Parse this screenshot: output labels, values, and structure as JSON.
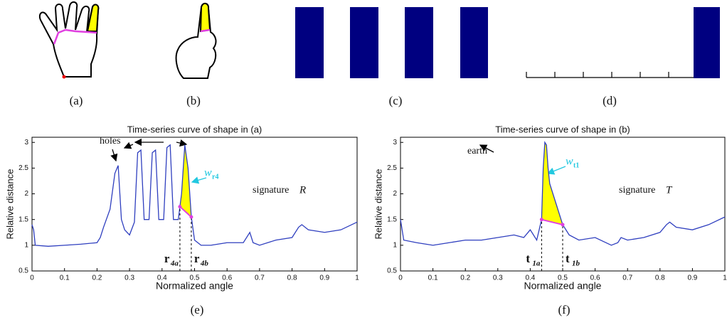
{
  "panel_labels": [
    "(a)",
    "(b)",
    "(c)",
    "(d)",
    "(e)",
    "(f)"
  ],
  "chart_data": [
    {
      "type": "line",
      "title": "Time-series curve of shape in (a)",
      "x_label": "Normalized angle",
      "y_label": "Relative distance",
      "x": [
        0,
        0.005,
        0.01,
        0.05,
        0.1,
        0.15,
        0.2,
        0.21,
        0.22,
        0.24,
        0.255,
        0.265,
        0.275,
        0.285,
        0.3,
        0.315,
        0.325,
        0.335,
        0.345,
        0.36,
        0.37,
        0.38,
        0.39,
        0.405,
        0.415,
        0.425,
        0.435,
        0.45,
        0.46,
        0.47,
        0.48,
        0.49,
        0.5,
        0.52,
        0.55,
        0.6,
        0.65,
        0.67,
        0.68,
        0.7,
        0.75,
        0.8,
        0.82,
        0.83,
        0.85,
        0.9,
        0.95,
        1
      ],
      "series": [
        {
          "color": "#2f3fbf",
          "values": [
            1.4,
            1.3,
            1.0,
            0.98,
            1.0,
            1.02,
            1.05,
            1.15,
            1.35,
            1.7,
            2.4,
            2.55,
            1.5,
            1.3,
            1.2,
            1.45,
            2.8,
            2.85,
            1.5,
            1.5,
            2.8,
            2.85,
            1.5,
            1.5,
            2.9,
            2.95,
            1.5,
            1.5,
            2.0,
            2.95,
            2.5,
            1.55,
            1.1,
            1.0,
            1.0,
            1.05,
            1.05,
            1.25,
            1.05,
            1.0,
            1.1,
            1.15,
            1.35,
            1.4,
            1.3,
            1.25,
            1.3,
            1.45
          ]
        }
      ],
      "xlim": [
        0,
        1
      ],
      "ylim": [
        0.5,
        3.1
      ],
      "xticks": [
        0,
        0.1,
        0.2,
        0.3,
        0.4,
        0.5,
        0.6,
        0.7,
        0.8,
        0.9,
        1
      ],
      "yticks": [
        0.5,
        1,
        1.5,
        2,
        2.5,
        3
      ],
      "markers": [
        {
          "x": 0.455,
          "label": "r",
          "sub": "4a"
        },
        {
          "x": 0.49,
          "label": "r",
          "sub": "4b"
        }
      ],
      "annotations": {
        "holes": "holes",
        "signature": "signature",
        "signature_var": "R",
        "width": "w",
        "width_sub": "r4"
      }
    },
    {
      "type": "line",
      "title": "Time-series curve of shape in (b)",
      "x_label": "Normalized angle",
      "y_label": "Relative distance",
      "x": [
        0,
        0.005,
        0.01,
        0.05,
        0.1,
        0.15,
        0.2,
        0.25,
        0.3,
        0.35,
        0.38,
        0.4,
        0.42,
        0.435,
        0.44,
        0.445,
        0.45,
        0.455,
        0.46,
        0.47,
        0.48,
        0.49,
        0.5,
        0.51,
        0.52,
        0.55,
        0.6,
        0.65,
        0.67,
        0.68,
        0.7,
        0.75,
        0.8,
        0.82,
        0.83,
        0.85,
        0.9,
        0.95,
        1
      ],
      "series": [
        {
          "color": "#2f3fbf",
          "values": [
            1.5,
            1.3,
            1.1,
            1.05,
            1.0,
            1.05,
            1.1,
            1.1,
            1.15,
            1.2,
            1.15,
            1.3,
            1.1,
            1.5,
            2.5,
            3.0,
            2.95,
            2.5,
            2.2,
            2.0,
            1.8,
            1.6,
            1.4,
            1.3,
            1.2,
            1.1,
            1.15,
            1.0,
            1.05,
            1.15,
            1.1,
            1.15,
            1.25,
            1.4,
            1.45,
            1.35,
            1.3,
            1.4,
            1.55
          ]
        }
      ],
      "xlim": [
        0,
        1
      ],
      "ylim": [
        0.5,
        3.1
      ],
      "xticks": [
        0,
        0.1,
        0.2,
        0.3,
        0.4,
        0.5,
        0.6,
        0.7,
        0.8,
        0.9,
        1
      ],
      "yticks": [
        0.5,
        1,
        1.5,
        2,
        2.5,
        3
      ],
      "markers": [
        {
          "x": 0.435,
          "label": "t",
          "sub": "1a"
        },
        {
          "x": 0.5,
          "label": "t",
          "sub": "1b"
        }
      ],
      "annotations": {
        "holes": "earth",
        "signature": "signature",
        "signature_var": "T",
        "width": "w",
        "width_sub": "t1"
      }
    }
  ]
}
